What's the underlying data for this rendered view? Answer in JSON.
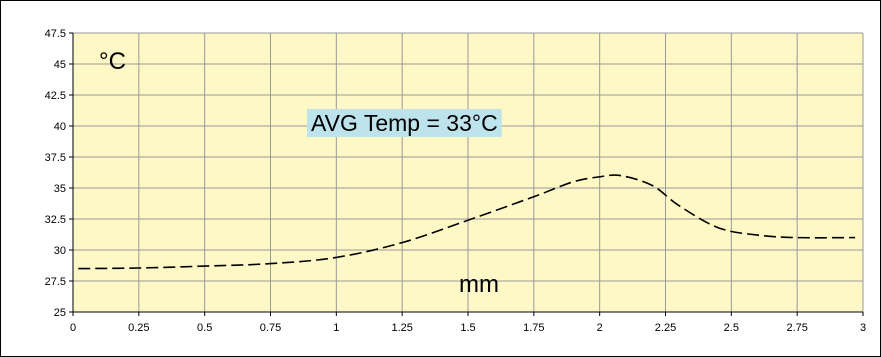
{
  "chart_data": {
    "type": "line",
    "title": "",
    "xlabel": "mm",
    "ylabel": "°C",
    "annotation": "AVG Temp = 33°C",
    "xlim": [
      0,
      3
    ],
    "ylim": [
      25,
      47.5
    ],
    "x_ticks": [
      "0",
      "0.25",
      "0.5",
      "0.75",
      "1",
      "1.25",
      "1.5",
      "1.75",
      "2",
      "2.25",
      "2.5",
      "2.75",
      "3"
    ],
    "y_ticks": [
      "25",
      "27.5",
      "30",
      "32.5",
      "35",
      "37.5",
      "40",
      "42.5",
      "45",
      "47.5"
    ],
    "grid": true,
    "legend": "none",
    "series": [
      {
        "line_style": "dashed",
        "x": [
          0.02,
          0.25,
          0.5,
          0.75,
          1.0,
          1.25,
          1.5,
          1.75,
          1.9,
          2.0,
          2.08,
          2.2,
          2.3,
          2.45,
          2.6,
          2.75,
          2.97
        ],
        "y": [
          28.5,
          28.55,
          28.7,
          28.9,
          29.4,
          30.6,
          32.4,
          34.3,
          35.5,
          35.9,
          36.0,
          35.2,
          33.6,
          31.8,
          31.2,
          31.0,
          31.0
        ]
      }
    ],
    "colors": {
      "plot_background": "#fdf8c5",
      "grid": "#9a9a9a",
      "axis": "#000000",
      "line": "#000000",
      "annotation_background": "#bde3ed"
    }
  }
}
